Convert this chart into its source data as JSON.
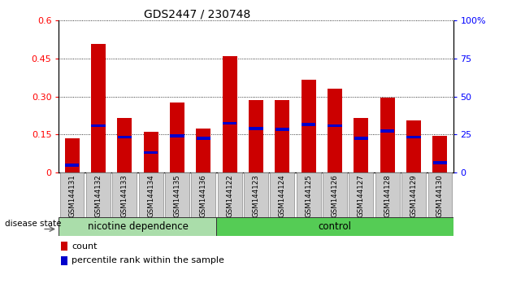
{
  "title": "GDS2447 / 230748",
  "categories": [
    "GSM144131",
    "GSM144132",
    "GSM144133",
    "GSM144134",
    "GSM144135",
    "GSM144136",
    "GSM144122",
    "GSM144123",
    "GSM144124",
    "GSM144125",
    "GSM144126",
    "GSM144127",
    "GSM144128",
    "GSM144129",
    "GSM144130"
  ],
  "count_values": [
    0.135,
    0.505,
    0.215,
    0.16,
    0.275,
    0.175,
    0.46,
    0.285,
    0.285,
    0.365,
    0.33,
    0.215,
    0.295,
    0.205,
    0.145
  ],
  "percentile_values": [
    0.03,
    0.185,
    0.14,
    0.08,
    0.145,
    0.135,
    0.195,
    0.175,
    0.17,
    0.19,
    0.185,
    0.135,
    0.165,
    0.14,
    0.04
  ],
  "group1_label": "nicotine dependence",
  "group2_label": "control",
  "group1_count": 6,
  "group2_count": 9,
  "bar_color": "#cc0000",
  "percentile_color": "#0000cc",
  "group1_bg": "#aaddaa",
  "group2_bg": "#55cc55",
  "tick_bg": "#cccccc",
  "ylim_left": [
    0,
    0.6
  ],
  "ylim_right": [
    0,
    100
  ],
  "yticks_left": [
    0,
    0.15,
    0.3,
    0.45,
    0.6
  ],
  "ytick_labels_left": [
    "0",
    "0.15",
    "0.30",
    "0.45",
    "0.6"
  ],
  "yticks_right": [
    0,
    25,
    50,
    75,
    100
  ],
  "ytick_labels_right": [
    "0",
    "25",
    "50",
    "75",
    "100%"
  ],
  "legend_count": "count",
  "legend_percentile": "percentile rank within the sample",
  "disease_state_label": "disease state",
  "bar_width": 0.55
}
